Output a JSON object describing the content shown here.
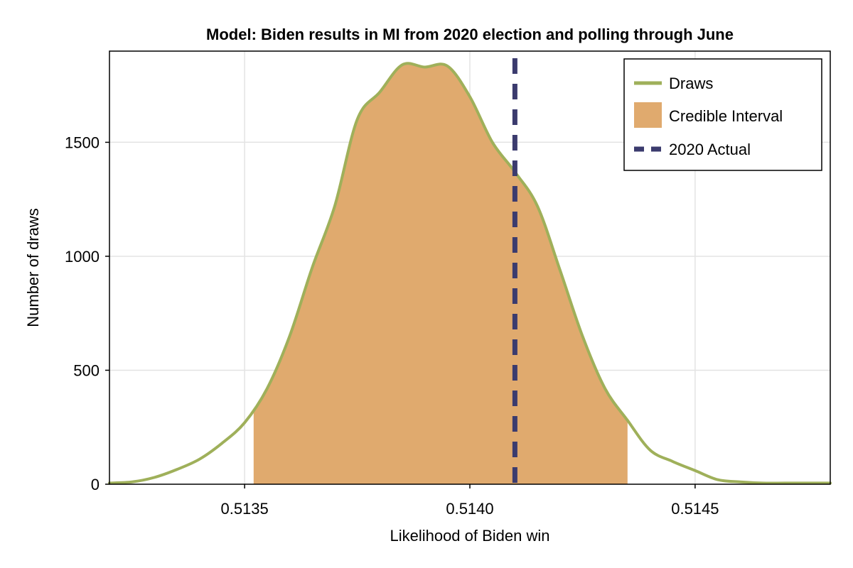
{
  "chart_data": {
    "type": "area",
    "title": "Model: Biden results in MI from 2020 election and polling through June",
    "xlabel": "Likelihood of Biden win",
    "ylabel": "Number of draws",
    "xlim": [
      0.5132,
      0.5148
    ],
    "ylim": [
      0,
      1900
    ],
    "xticks": [
      0.5135,
      0.514,
      0.5145
    ],
    "xtick_labels": [
      "0.5135",
      "0.5140",
      "0.5145"
    ],
    "yticks": [
      0,
      500,
      1000,
      1500
    ],
    "ytick_labels": [
      "0",
      "500",
      "1000",
      "1500"
    ],
    "grid": true,
    "legend": {
      "position": "top-right",
      "entries": [
        {
          "label": "Draws",
          "kind": "line",
          "color": "#9fb05a"
        },
        {
          "label": "Credible Interval",
          "kind": "patch",
          "color": "#e0aa6e"
        },
        {
          "label": "2020 Actual",
          "kind": "dashed",
          "color": "#3b3b6e"
        }
      ]
    },
    "series": [
      {
        "name": "Draws",
        "color": "#9fb05a",
        "x": [
          0.5132,
          0.51325,
          0.5133,
          0.51335,
          0.5134,
          0.51345,
          0.5135,
          0.51355,
          0.5136,
          0.51365,
          0.5137,
          0.51375,
          0.5138,
          0.51385,
          0.5139,
          0.51395,
          0.514,
          0.51405,
          0.5141,
          0.51415,
          0.5142,
          0.51425,
          0.5143,
          0.51435,
          0.5144,
          0.51445,
          0.5145,
          0.51455,
          0.5146,
          0.51465,
          0.5147,
          0.51475,
          0.5148
        ],
        "y": [
          5,
          10,
          30,
          65,
          110,
          180,
          270,
          420,
          650,
          950,
          1220,
          1600,
          1720,
          1840,
          1830,
          1835,
          1700,
          1500,
          1370,
          1220,
          940,
          650,
          420,
          280,
          150,
          100,
          60,
          20,
          10,
          5,
          5,
          5,
          5
        ]
      }
    ],
    "credible_interval": {
      "name": "Credible Interval",
      "color": "#e0aa6e",
      "x_start": 0.51352,
      "x_end": 0.51435
    },
    "reference_line": {
      "name": "2020 Actual",
      "color": "#3b3b6e",
      "x": 0.5141
    }
  }
}
